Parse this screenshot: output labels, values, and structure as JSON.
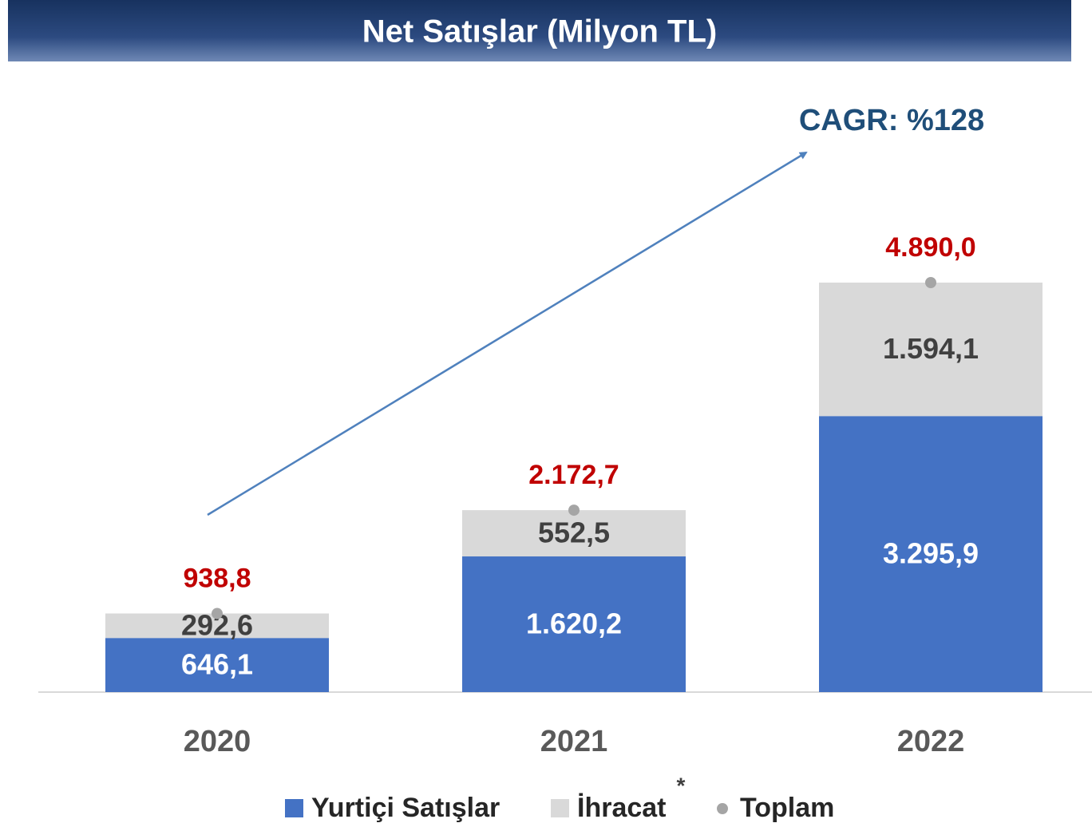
{
  "chart_data": {
    "type": "stacked_bar",
    "title": "Net Satışlar (Milyon TL)",
    "annotation": "CAGR: %128",
    "footnote_marker": "*",
    "categories": [
      "2020",
      "2021",
      "2022"
    ],
    "series": [
      {
        "name": "Yurtiçi Satışlar",
        "color": "#4472c4",
        "kind": "bar",
        "values": [
          646.1,
          1620.2,
          3295.9
        ],
        "value_labels": [
          "646,1",
          "1.620,2",
          "3.295,9"
        ]
      },
      {
        "name": "İhracat",
        "color": "#d9d9d9",
        "kind": "bar",
        "values": [
          292.6,
          552.5,
          1594.1
        ],
        "value_labels": [
          "292,6",
          "552,5",
          "1.594,1"
        ]
      },
      {
        "name": "Toplam",
        "color": "#a5a5a5",
        "kind": "dot",
        "values": [
          938.8,
          2172.7,
          4890.0
        ],
        "value_labels": [
          "938,8",
          "2.172,7",
          "4.890,0"
        ]
      }
    ]
  }
}
